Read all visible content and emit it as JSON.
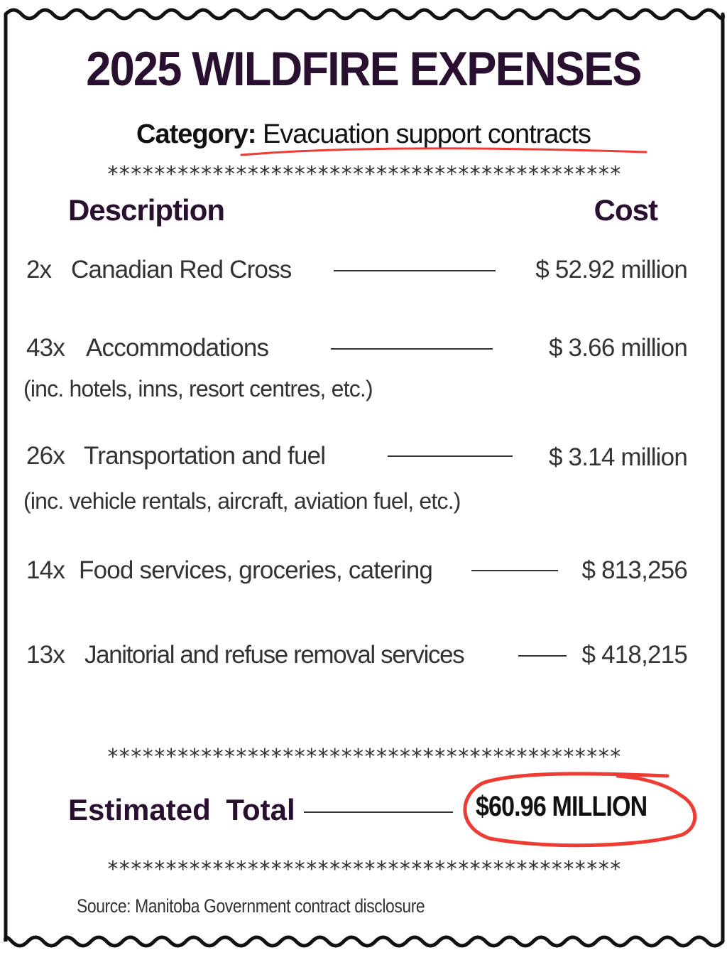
{
  "title": "2025 WILDFIRE EXPENSES",
  "category": {
    "label": "Category:",
    "value": "Evacuation support contracts"
  },
  "separator": "********************************************",
  "headers": {
    "description": "Description",
    "cost": "Cost"
  },
  "items": [
    {
      "qty": "2x",
      "name": "Canadian Red Cross",
      "note": "",
      "cost": "$ 52.92 million"
    },
    {
      "qty": "43x",
      "name": "Accommodations",
      "note": "(inc. hotels, inns, resort centres, etc.)",
      "cost": "$ 3.66 million"
    },
    {
      "qty": "26x",
      "name": "Transportation and fuel",
      "note": "(inc. vehicle rentals, aircraft, aviation fuel, etc.)",
      "cost": "$ 3.14 million"
    },
    {
      "qty": "14x",
      "name": "Food services, groceries, catering",
      "note": "",
      "cost": "$ 813,256"
    },
    {
      "qty": "13x",
      "name": "Janitorial and refuse removal services",
      "note": "",
      "cost": "$ 418,215"
    }
  ],
  "total": {
    "label": "Estimated Total",
    "value": "$60.96 MILLION"
  },
  "source": "Source: Manitoba Government contract disclosure",
  "colors": {
    "title": "#2a1030",
    "highlight": "#ee3b33",
    "text": "#333333"
  }
}
